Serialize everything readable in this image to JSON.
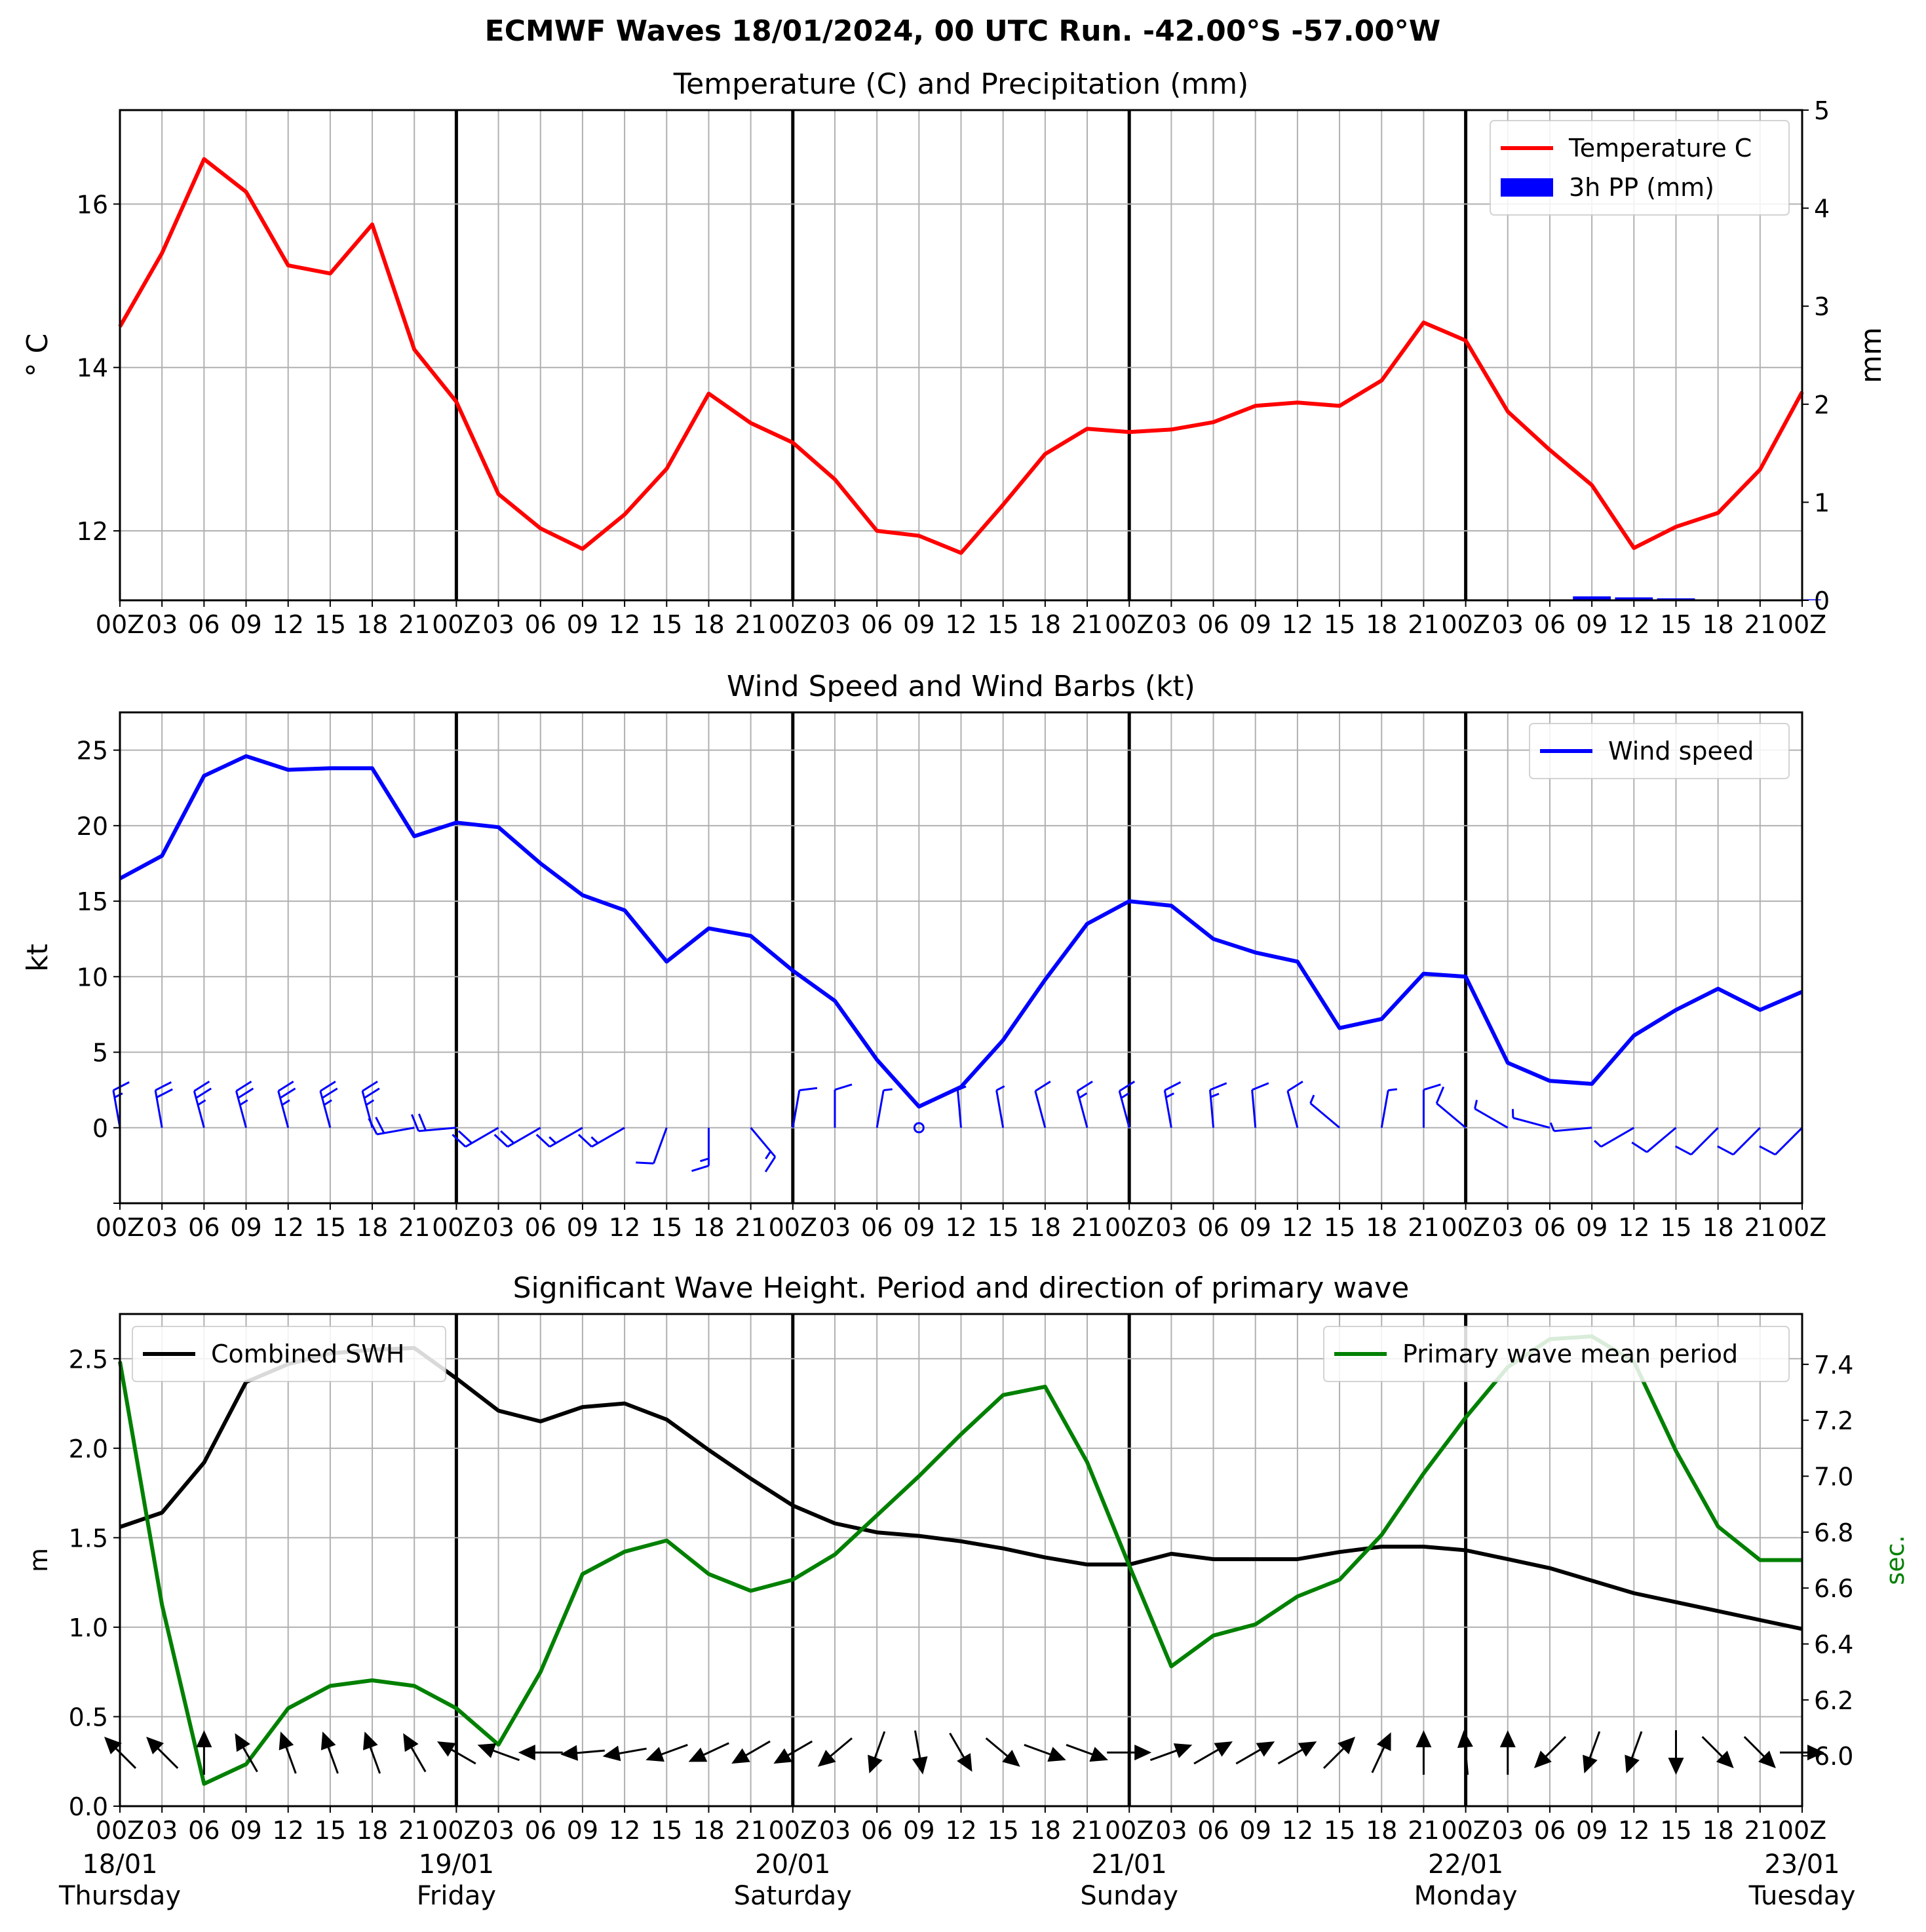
{
  "figure_title": "ECMWF Waves 18/01/2024, 00 UTC Run. -42.00°S -57.00°W",
  "hour_ticks": [
    "00Z",
    "03",
    "06",
    "09",
    "12",
    "15",
    "18",
    "21",
    "00Z",
    "03",
    "06",
    "09",
    "12",
    "15",
    "18",
    "21",
    "00Z",
    "03",
    "06",
    "09",
    "12",
    "15",
    "18",
    "21",
    "00Z",
    "03",
    "06",
    "09",
    "12",
    "15",
    "18",
    "21",
    "00Z",
    "03",
    "06",
    "09",
    "12",
    "15",
    "18",
    "21",
    "00Z"
  ],
  "day_labels": [
    {
      "date": "18/01",
      "weekday": "Thursday"
    },
    {
      "date": "19/01",
      "weekday": "Friday"
    },
    {
      "date": "20/01",
      "weekday": "Saturday"
    },
    {
      "date": "21/01",
      "weekday": "Sunday"
    },
    {
      "date": "22/01",
      "weekday": "Monday"
    },
    {
      "date": "23/01",
      "weekday": "Tuesday"
    }
  ],
  "colors": {
    "temperature": "#ff0000",
    "precip": "#0000ff",
    "wind": "#0000ff",
    "swh": "#000000",
    "period": "#008000",
    "grid": "#b0b0b0"
  },
  "chart_data": [
    {
      "type": "line",
      "title": "Temperature (C) and Precipitation (mm)",
      "ylabel": "° C",
      "ylabel_right": "mm",
      "ylim": [
        11.15,
        17.15
      ],
      "ylim_right": [
        0,
        5
      ],
      "yticks": [
        12,
        14,
        16
      ],
      "yticks_right": [
        0,
        1,
        2,
        3,
        4,
        5
      ],
      "grid": true,
      "legend_placement": "top-right",
      "series": [
        {
          "name": "Temperature C",
          "axis": "left",
          "values": [
            14.5,
            15.4,
            16.55,
            16.15,
            15.25,
            15.15,
            15.75,
            14.22,
            13.58,
            12.45,
            12.03,
            11.78,
            12.2,
            12.76,
            13.68,
            13.32,
            13.08,
            12.63,
            12.0,
            11.94,
            11.73,
            12.32,
            12.94,
            13.25,
            13.21,
            13.24,
            13.33,
            13.53,
            13.57,
            13.53,
            13.84,
            14.55,
            14.33,
            13.46,
            12.99,
            12.56,
            11.79,
            12.05,
            12.22,
            12.75,
            13.7
          ]
        },
        {
          "name": "3h PP (mm)",
          "axis": "right",
          "type": "bar",
          "values": [
            0,
            0,
            0,
            0,
            0,
            0,
            0,
            0,
            0,
            0,
            0,
            0,
            0,
            0,
            0,
            0,
            0,
            0,
            0,
            0,
            0,
            0,
            0,
            0,
            0,
            0,
            0.01,
            0,
            0,
            0,
            0,
            0,
            0,
            0,
            0,
            0.04,
            0.03,
            0.02,
            0.01,
            0,
            0.01
          ]
        }
      ]
    },
    {
      "type": "line",
      "title": "Wind Speed and Wind Barbs (kt)",
      "ylabel": "kt",
      "ylim": [
        -5,
        27.5
      ],
      "yticks": [
        0,
        5,
        10,
        15,
        20,
        25
      ],
      "grid": true,
      "legend_placement": "top-right",
      "series": [
        {
          "name": "Wind speed",
          "values": [
            16.5,
            18.0,
            23.3,
            24.6,
            23.7,
            23.8,
            23.8,
            19.3,
            20.2,
            19.9,
            17.5,
            15.4,
            14.4,
            11.0,
            13.2,
            12.7,
            10.4,
            8.4,
            4.5,
            1.4,
            2.7,
            5.8,
            9.8,
            13.5,
            15.0,
            14.7,
            12.5,
            11.6,
            11.0,
            6.6,
            7.2,
            10.2,
            10.0,
            4.3,
            3.1,
            2.9,
            6.1,
            7.8,
            9.2,
            7.8,
            9.0
          ]
        }
      ],
      "barb_directions_deg": [
        350,
        350,
        345,
        345,
        345,
        345,
        345,
        260,
        265,
        240,
        240,
        240,
        240,
        200,
        180,
        140,
        10,
        0,
        10,
        0,
        355,
        350,
        345,
        345,
        345,
        350,
        355,
        355,
        345,
        310,
        10,
        0,
        310,
        300,
        285,
        265,
        240,
        230,
        225,
        225,
        225
      ]
    },
    {
      "type": "line",
      "title": "Significant Wave Height. Period and direction of primary wave",
      "ylabel": "m",
      "ylabel_right": "sec.",
      "ylim": [
        0,
        2.75
      ],
      "ylim_right": [
        5.82,
        7.58
      ],
      "yticks": [
        0.0,
        0.5,
        1.0,
        1.5,
        2.0,
        2.5
      ],
      "yticks_right": [
        6.0,
        6.2,
        6.4,
        6.6,
        6.8,
        7.0,
        7.2,
        7.4
      ],
      "grid": true,
      "legend_placement": [
        "top-left",
        "top-right"
      ],
      "series": [
        {
          "name": "Combined SWH",
          "axis": "left",
          "values": [
            1.56,
            1.64,
            1.92,
            2.37,
            2.47,
            2.53,
            2.55,
            2.56,
            2.39,
            2.21,
            2.15,
            2.23,
            2.25,
            2.16,
            1.99,
            1.83,
            1.68,
            1.58,
            1.53,
            1.51,
            1.48,
            1.44,
            1.39,
            1.35,
            1.35,
            1.41,
            1.38,
            1.38,
            1.38,
            1.42,
            1.45,
            1.45,
            1.43,
            1.38,
            1.33,
            1.26,
            1.19,
            1.14,
            1.09,
            1.04,
            0.99
          ]
        },
        {
          "name": "Primary wave mean period",
          "axis": "right",
          "values": [
            7.41,
            6.54,
            5.9,
            5.97,
            6.17,
            6.25,
            6.27,
            6.25,
            6.17,
            6.04,
            6.3,
            6.65,
            6.73,
            6.77,
            6.65,
            6.59,
            6.63,
            6.72,
            6.86,
            7.0,
            7.15,
            7.29,
            7.32,
            7.05,
            6.68,
            6.32,
            6.43,
            6.47,
            6.57,
            6.63,
            6.79,
            7.01,
            7.21,
            7.39,
            7.49,
            7.5,
            7.41,
            7.09,
            6.82,
            6.7,
            6.7
          ]
        }
      ],
      "wave_directions_deg": [
        315,
        315,
        0,
        330,
        340,
        340,
        340,
        330,
        300,
        290,
        270,
        265,
        260,
        250,
        245,
        240,
        240,
        230,
        200,
        170,
        150,
        130,
        110,
        110,
        90,
        70,
        60,
        60,
        60,
        45,
        25,
        0,
        355,
        0,
        225,
        200,
        200,
        180,
        135,
        135,
        90
      ]
    }
  ]
}
